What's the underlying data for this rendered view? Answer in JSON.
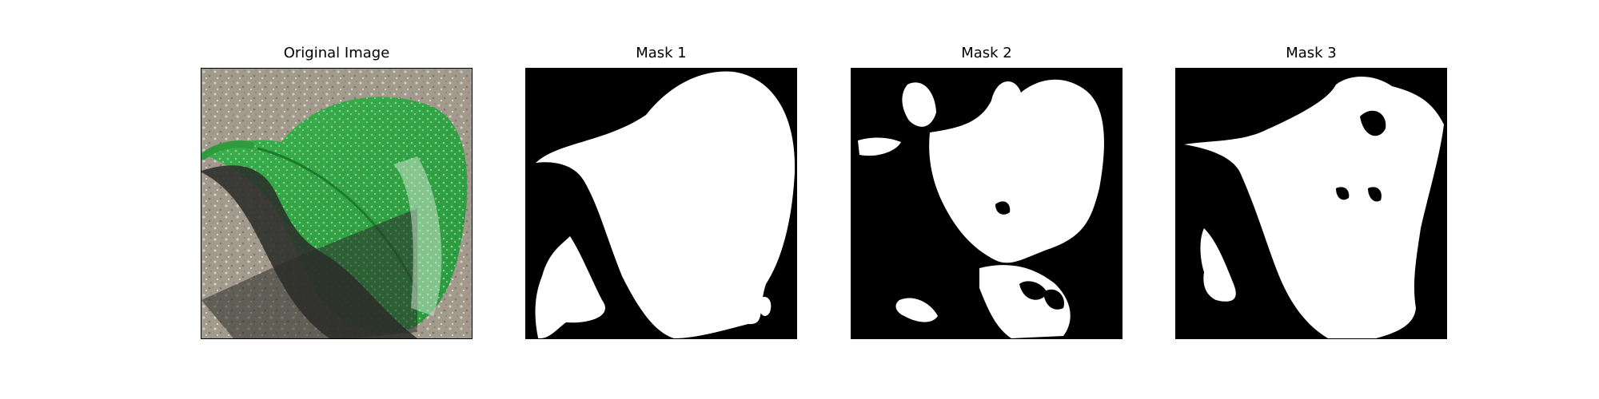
{
  "figure": {
    "panels": [
      {
        "title": "Original Image"
      },
      {
        "title": "Mask 1"
      },
      {
        "title": "Mask 2"
      },
      {
        "title": "Mask 3"
      }
    ]
  },
  "colors": {
    "background": "#ffffff",
    "mask_background": "#000000",
    "mask_foreground": "#ffffff",
    "leaf": "#3fb34f",
    "ground": "#9c9588",
    "shadow": "#2e2f2c"
  }
}
